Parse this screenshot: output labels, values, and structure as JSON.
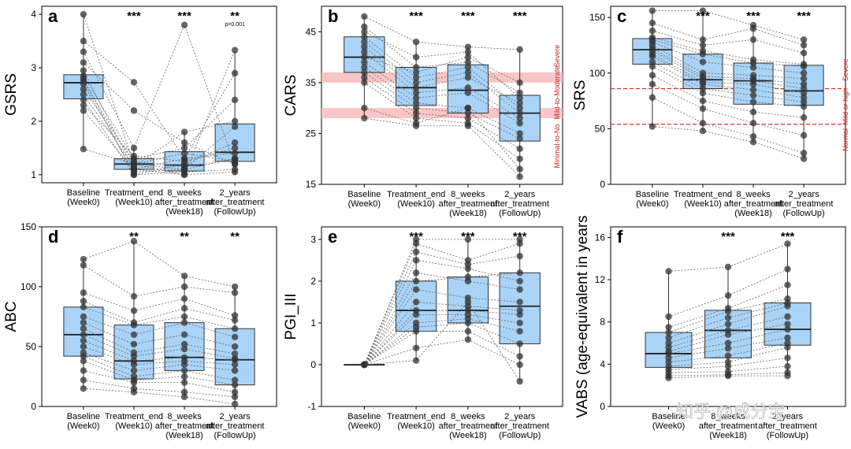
{
  "colors": {
    "box_fill": "#a9d4f7",
    "box_stroke": "#333333",
    "point": "#333333",
    "line": "#666666",
    "ref_line": "#e03030",
    "band": "#f7b8b8",
    "sev_text": "#cc2222"
  },
  "watermark": "知乎 @成分宝",
  "chart_data": [
    {
      "id": "a",
      "type": "box",
      "ylabel": "GSRS",
      "ylim": [
        0.85,
        4.15
      ],
      "yticks": [
        1,
        2,
        3,
        4
      ],
      "categories": [
        "Baseline\n(Week0)",
        "Treatment_end\n(Week10)",
        "8_weeks\nafter_treatment\n(Week18)",
        "2_years\nafter_treatment\n(FollowUp)"
      ],
      "significance": [
        "",
        "***",
        "***",
        "**"
      ],
      "significance_note": [
        "",
        "",
        "",
        "p=0.001"
      ],
      "boxes": [
        {
          "q1": 2.42,
          "median": 2.72,
          "q3": 2.87,
          "lo": 1.48,
          "hi": 4.0
        },
        {
          "q1": 1.1,
          "median": 1.2,
          "q3": 1.3,
          "lo": 1.0,
          "hi": 1.5
        },
        {
          "q1": 1.07,
          "median": 1.18,
          "q3": 1.43,
          "lo": 1.0,
          "hi": 1.8
        },
        {
          "q1": 1.25,
          "median": 1.42,
          "q3": 1.95,
          "lo": 1.0,
          "hi": 3.3
        }
      ],
      "subjects": [
        [
          4.0,
          1.2,
          1.1,
          1.3
        ],
        [
          3.5,
          2.73,
          1.3,
          1.4
        ],
        [
          3.3,
          1.5,
          3.8,
          1.2
        ],
        [
          2.95,
          1.1,
          1.0,
          3.33
        ],
        [
          2.85,
          1.3,
          1.5,
          2.4
        ],
        [
          2.8,
          1.0,
          1.2,
          1.6
        ],
        [
          2.75,
          1.2,
          1.4,
          1.25
        ],
        [
          2.7,
          1.05,
          1.1,
          1.9
        ],
        [
          2.6,
          1.25,
          1.15,
          1.3
        ],
        [
          2.5,
          1.15,
          1.8,
          2.0
        ],
        [
          2.4,
          1.0,
          1.05,
          1.1
        ],
        [
          2.3,
          1.35,
          1.25,
          1.5
        ],
        [
          2.2,
          1.1,
          1.3,
          2.9
        ],
        [
          1.48,
          1.2,
          1.0,
          1.05
        ],
        [
          3.1,
          2.2,
          1.6,
          1.2
        ]
      ]
    },
    {
      "id": "b",
      "type": "box",
      "ylabel": "CARS",
      "ylim": [
        15,
        50
      ],
      "yticks": [
        15,
        25,
        35,
        45
      ],
      "categories": [
        "Baseline\n(Week0)",
        "Treatment_end\n(Week10)",
        "8_weeks\nafter_treatment\n(Week18)",
        "2_years\nafter_treatment\n(FollowUp)"
      ],
      "significance": [
        "",
        "***",
        "***",
        "***"
      ],
      "significance_note": [
        "",
        "",
        "",
        ""
      ],
      "bands": [
        [
          28,
          30
        ],
        [
          35,
          37
        ]
      ],
      "band_labels": [
        {
          "text": "Severe",
          "y_from": 36.5,
          "y_to": 44
        },
        {
          "text": "Mild-to-Moderate",
          "y_from": 29.5,
          "y_to": 36.5
        },
        {
          "text": "Minimal-to-No",
          "y_from": 15.5,
          "y_to": 29.5
        }
      ],
      "boxes": [
        {
          "q1": 37.0,
          "median": 40.0,
          "q3": 44.0,
          "lo": 28.0,
          "hi": 48.0
        },
        {
          "q1": 30.5,
          "median": 34.0,
          "q3": 38.0,
          "lo": 26.5,
          "hi": 43.0
        },
        {
          "q1": 29.0,
          "median": 33.5,
          "q3": 38.5,
          "lo": 26.5,
          "hi": 42.0
        },
        {
          "q1": 23.5,
          "median": 29.0,
          "q3": 32.5,
          "lo": 16.5,
          "hi": 41.5
        }
      ],
      "subjects": [
        [
          48,
          43,
          42,
          41.5
        ],
        [
          46,
          38,
          39,
          33
        ],
        [
          45,
          40,
          41,
          32
        ],
        [
          44,
          36,
          38,
          30
        ],
        [
          43,
          35,
          37,
          29
        ],
        [
          42,
          34,
          36,
          31
        ],
        [
          41,
          33,
          34,
          28
        ],
        [
          40,
          37,
          40,
          35
        ],
        [
          39,
          32,
          33,
          27
        ],
        [
          38,
          31,
          30,
          25
        ],
        [
          37,
          30,
          29,
          24
        ],
        [
          36,
          29,
          28,
          22
        ],
        [
          35,
          28,
          27,
          20
        ],
        [
          30,
          27,
          30,
          18
        ],
        [
          28,
          26.5,
          26.5,
          16.5
        ]
      ]
    },
    {
      "id": "c",
      "type": "box",
      "ylabel": "SRS",
      "ylim": [
        0,
        160
      ],
      "yticks": [
        0,
        50,
        100,
        150
      ],
      "categories": [
        "Baseline\n(Week0)",
        "Treatment_end\n(Week10)",
        "8_weeks\nafter_treatment\n(Week18)",
        "2_years\nafter_treatment\n(FollowUp)"
      ],
      "significance": [
        "",
        "***",
        "***",
        "***"
      ],
      "significance_note": [
        "",
        "",
        "",
        ""
      ],
      "hlines": [
        86,
        54
      ],
      "band_labels": [
        {
          "text": "Severe",
          "y_from": 86,
          "y_to": 120
        },
        {
          "text": "Mild or high",
          "y_from": 54,
          "y_to": 86
        },
        {
          "text": "Normal",
          "y_from": 26,
          "y_to": 54
        }
      ],
      "boxes": [
        {
          "q1": 108,
          "median": 121,
          "q3": 131,
          "lo": 52,
          "hi": 156
        },
        {
          "q1": 86,
          "median": 94,
          "q3": 117,
          "lo": 48,
          "hi": 156
        },
        {
          "q1": 72,
          "median": 93,
          "q3": 109,
          "lo": 38,
          "hi": 143
        },
        {
          "q1": 71,
          "median": 84,
          "q3": 107,
          "lo": 23,
          "hi": 130
        }
      ],
      "subjects": [
        [
          156,
          156,
          143,
          130
        ],
        [
          145,
          130,
          140,
          125
        ],
        [
          138,
          125,
          130,
          118
        ],
        [
          132,
          120,
          112,
          108
        ],
        [
          130,
          117,
          109,
          106
        ],
        [
          128,
          110,
          105,
          100
        ],
        [
          125,
          100,
          98,
          95
        ],
        [
          122,
          97,
          95,
          90
        ],
        [
          120,
          95,
          93,
          86
        ],
        [
          117,
          92,
          90,
          82
        ],
        [
          115,
          90,
          85,
          78
        ],
        [
          110,
          86,
          80,
          74
        ],
        [
          106,
          82,
          74,
          70
        ],
        [
          98,
          75,
          65,
          60
        ],
        [
          90,
          68,
          55,
          44
        ],
        [
          78,
          55,
          43,
          28
        ],
        [
          52,
          48,
          38,
          23
        ]
      ]
    },
    {
      "id": "d",
      "type": "box",
      "ylabel": "ABC",
      "ylim": [
        0,
        150
      ],
      "yticks": [
        0,
        50,
        100,
        150
      ],
      "categories": [
        "Baseline\n(Week0)",
        "Treatment_end\n(Week10)",
        "8_weeks\nafter_treatment\n(Week18)",
        "2_years\nafter_treatment\n(FollowUp)"
      ],
      "significance": [
        "",
        "**",
        "**",
        "**"
      ],
      "significance_note": [
        "",
        "",
        "",
        ""
      ],
      "boxes": [
        {
          "q1": 42,
          "median": 60,
          "q3": 83,
          "lo": 15,
          "hi": 123
        },
        {
          "q1": 23,
          "median": 38,
          "q3": 68,
          "lo": 12,
          "hi": 138
        },
        {
          "q1": 30,
          "median": 41,
          "q3": 70,
          "lo": 8,
          "hi": 109
        },
        {
          "q1": 18,
          "median": 39,
          "q3": 65,
          "lo": 2,
          "hi": 100
        }
      ],
      "subjects": [
        [
          123,
          138,
          109,
          100
        ],
        [
          118,
          92,
          100,
          95
        ],
        [
          95,
          80,
          90,
          76
        ],
        [
          88,
          70,
          82,
          72
        ],
        [
          83,
          68,
          75,
          65
        ],
        [
          75,
          60,
          70,
          58
        ],
        [
          70,
          52,
          60,
          50
        ],
        [
          65,
          45,
          52,
          44
        ],
        [
          60,
          42,
          48,
          40
        ],
        [
          55,
          38,
          41,
          39
        ],
        [
          50,
          35,
          38,
          35
        ],
        [
          45,
          30,
          35,
          30
        ],
        [
          42,
          25,
          30,
          22
        ],
        [
          38,
          22,
          25,
          18
        ],
        [
          30,
          20,
          20,
          12
        ],
        [
          22,
          15,
          12,
          8
        ],
        [
          15,
          12,
          8,
          2
        ]
      ]
    },
    {
      "id": "e",
      "type": "box",
      "ylabel": "PGI_III",
      "ylim": [
        -1,
        3.3
      ],
      "yticks": [
        -1,
        0,
        1,
        2,
        3
      ],
      "categories": [
        "Baseline\n(Week0)",
        "Treatment_end\n(Week10)",
        "8_weeks\nafter_treatment\n(Week18)",
        "2_years\nafter_treatment\n(FollowUp)"
      ],
      "significance": [
        "",
        "***",
        "***",
        "***"
      ],
      "significance_note": [
        "",
        "",
        "",
        ""
      ],
      "boxes": [
        {
          "q1": 0,
          "median": 0,
          "q3": 0,
          "lo": 0,
          "hi": 0
        },
        {
          "q1": 0.8,
          "median": 1.3,
          "q3": 2.0,
          "lo": 0.1,
          "hi": 3.0
        },
        {
          "q1": 1.0,
          "median": 1.3,
          "q3": 2.1,
          "lo": 0.6,
          "hi": 3.0
        },
        {
          "q1": 0.5,
          "median": 1.4,
          "q3": 2.2,
          "lo": -0.4,
          "hi": 3.0
        }
      ],
      "subjects": [
        [
          0,
          3.0,
          3.0,
          3.0
        ],
        [
          0,
          2.9,
          2.5,
          2.9
        ],
        [
          0,
          2.5,
          2.3,
          2.0
        ],
        [
          0,
          2.2,
          2.0,
          1.8
        ],
        [
          0,
          2.0,
          2.1,
          2.2
        ],
        [
          0,
          1.8,
          1.6,
          1.5
        ],
        [
          0,
          1.5,
          1.4,
          1.3
        ],
        [
          0,
          1.3,
          1.3,
          1.2
        ],
        [
          0,
          1.2,
          1.2,
          1.0
        ],
        [
          0,
          1.0,
          1.1,
          0.8
        ],
        [
          0,
          0.9,
          1.0,
          0.5
        ],
        [
          0,
          0.8,
          0.8,
          0.2
        ],
        [
          0,
          0.4,
          0.6,
          0.0
        ],
        [
          0,
          0.1,
          1.5,
          -0.4
        ],
        [
          0,
          2.7,
          2.4,
          2.6
        ]
      ]
    },
    {
      "id": "f",
      "type": "box",
      "ylabel": "VABS (age-equivalent in years",
      "ylim": [
        0,
        17
      ],
      "yticks": [
        0,
        4,
        8,
        12,
        16
      ],
      "categories": [
        "Baseline\n(Week0)",
        "8_weeks\nafter_treatment\n(Week18)",
        "2_years\nafter_treatment\n(FollowUp)"
      ],
      "significance": [
        "",
        "***",
        "***"
      ],
      "significance_note": [
        "",
        "",
        ""
      ],
      "boxes": [
        {
          "q1": 3.7,
          "median": 5.0,
          "q3": 7.0,
          "lo": 2.7,
          "hi": 12.8
        },
        {
          "q1": 4.6,
          "median": 7.2,
          "q3": 9.1,
          "lo": 2.9,
          "hi": 13.2
        },
        {
          "q1": 5.8,
          "median": 7.3,
          "q3": 9.8,
          "lo": 2.9,
          "hi": 15.4
        }
      ],
      "subjects": [
        [
          12.8,
          13.2,
          15.4
        ],
        [
          8.5,
          10.5,
          13.0
        ],
        [
          7.5,
          9.3,
          11.5
        ],
        [
          7.0,
          9.0,
          10.2
        ],
        [
          6.5,
          8.4,
          9.8
        ],
        [
          6.0,
          7.8,
          9.5
        ],
        [
          5.6,
          7.2,
          8.5
        ],
        [
          5.2,
          6.8,
          7.8
        ],
        [
          5.0,
          6.0,
          7.3
        ],
        [
          4.6,
          5.5,
          6.5
        ],
        [
          4.2,
          4.8,
          6.0
        ],
        [
          3.8,
          4.2,
          5.6
        ],
        [
          3.5,
          3.8,
          4.6
        ],
        [
          3.2,
          3.3,
          3.8
        ],
        [
          2.9,
          3.0,
          3.2
        ],
        [
          2.7,
          2.9,
          2.9
        ]
      ]
    }
  ]
}
